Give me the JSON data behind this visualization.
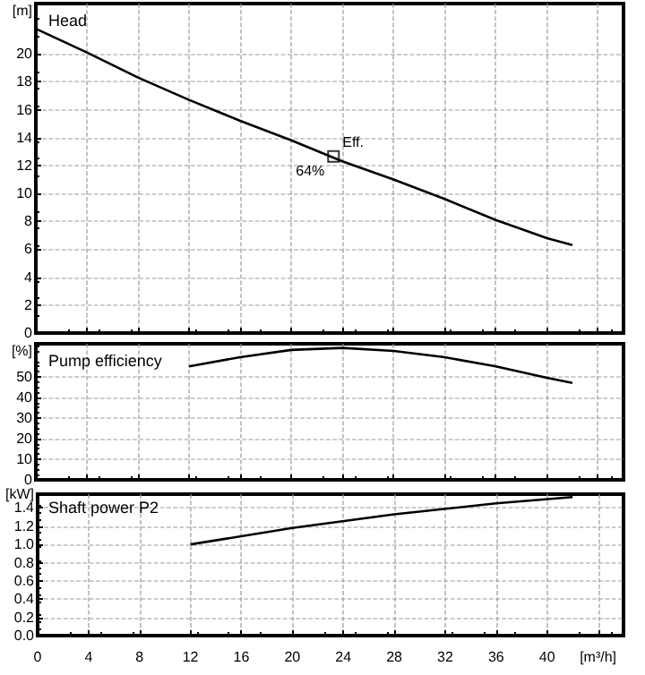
{
  "chart_data": [
    {
      "type": "line",
      "title": "Head",
      "ylabel": "[m]",
      "x": [
        0,
        4,
        8,
        12,
        16,
        20,
        24,
        28,
        32,
        36,
        40,
        42
      ],
      "series": [
        {
          "color": "#000000",
          "values": [
            21.8,
            20.1,
            18.3,
            16.7,
            15.2,
            13.8,
            12.3,
            11.0,
            9.6,
            8.1,
            6.8,
            6.3
          ]
        },
        {
          "type": "scatter",
          "color": "#000000",
          "x": [
            23.3
          ],
          "values": [
            12.65
          ],
          "marker": "square"
        }
      ],
      "annotations": [
        {
          "text": "Eff.",
          "x": 23.3,
          "y": 12.65
        },
        {
          "text": "64%",
          "x": 23.3,
          "y": 12.65
        }
      ],
      "xlim": [
        0,
        46
      ],
      "xticks": [
        0,
        4,
        8,
        12,
        16,
        20,
        24,
        28,
        32,
        36,
        40,
        44
      ],
      "ylim": [
        0,
        23.6
      ],
      "yticks": [
        0,
        2,
        4,
        6,
        8,
        10,
        12,
        14,
        16,
        18,
        20
      ],
      "grid": true,
      "tick_labels": "y",
      "marker": "none"
    },
    {
      "type": "line",
      "title": "Pump efficiency",
      "ylabel": "[%]",
      "x": [
        12,
        16,
        20,
        24,
        28,
        32,
        36,
        40,
        42
      ],
      "series": [
        {
          "color": "#000000",
          "values": [
            55,
            59.5,
            63,
            64,
            62.5,
            59.5,
            55,
            49.5,
            47
          ]
        }
      ],
      "xlim": [
        0,
        46
      ],
      "xticks": [
        0,
        4,
        8,
        12,
        16,
        20,
        24,
        28,
        32,
        36,
        40,
        44
      ],
      "ylim": [
        0,
        66
      ],
      "yticks": [
        0,
        10,
        20,
        30,
        40,
        50
      ],
      "grid": true,
      "tick_labels": "y",
      "marker": "none"
    },
    {
      "type": "line",
      "title": "Shaft power P2",
      "ylabel": "[kW]",
      "x": [
        12,
        20,
        28,
        36,
        42
      ],
      "series": [
        {
          "color": "#000000",
          "values": [
            1.0,
            1.18,
            1.33,
            1.45,
            1.52
          ]
        }
      ],
      "xlim": [
        0,
        46
      ],
      "xticks": [
        0,
        4,
        8,
        12,
        16,
        20,
        24,
        28,
        32,
        36,
        40,
        {
          "value": 44,
          "label": "[m³/h]"
        }
      ],
      "ylim": [
        0,
        1.55
      ],
      "yticks": [
        {
          "value": 0,
          "label": "0.0"
        },
        0.2,
        0.4,
        0.6,
        0.8,
        {
          "value": 1,
          "label": "1.0"
        },
        1.2,
        1.4
      ],
      "grid": true,
      "marker": "none"
    }
  ]
}
